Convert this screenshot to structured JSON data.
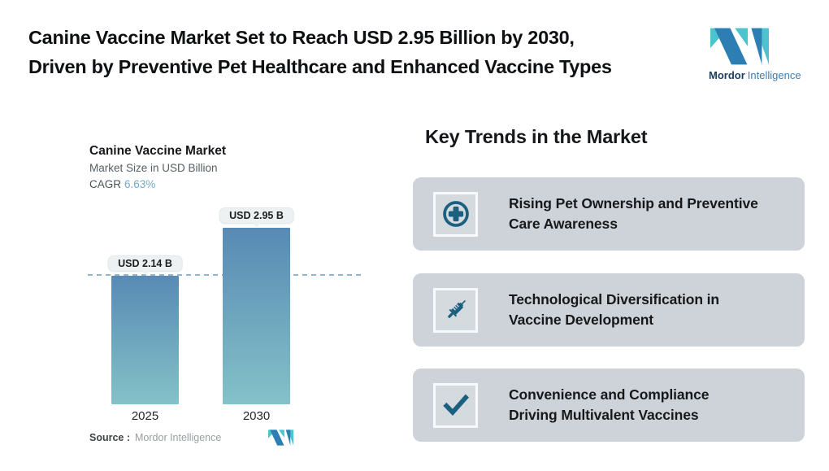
{
  "page": {
    "title_line1": "Canine Vaccine Market Set to Reach USD 2.95 Billion by 2030,",
    "title_line2": "Driven by Preventive Pet Healthcare and Enhanced Vaccine Types"
  },
  "brand": {
    "name_bold": "Mordor",
    "name_light": "Intelligence",
    "logo_blue": "#2d7eb3",
    "logo_teal": "#4cc3cd"
  },
  "chart_data": {
    "type": "bar",
    "title": "Canine Vaccine Market",
    "subtitle": "Market Size in USD Billion",
    "cagr_label": "CAGR",
    "cagr_value": "6.63%",
    "categories": [
      "2025",
      "2030"
    ],
    "values": [
      2.14,
      2.95
    ],
    "value_labels": [
      "USD 2.14 B",
      "USD 2.95 B"
    ],
    "ylim": [
      0,
      3.0
    ],
    "reference_line_value": 2.14,
    "grid": false,
    "legend": false,
    "bar_gradient_top": "#588ab4",
    "bar_gradient_bottom": "#84c1c8",
    "source_label": "Source :",
    "source_value": "Mordor Intelligence"
  },
  "trends": {
    "heading": "Key Trends in the Market",
    "card_bg": "#cdd3d9",
    "icon_color": "#1b6080",
    "items": [
      {
        "icon": "medical-cross-icon",
        "label": "Rising Pet Ownership and Preventive\nCare Awareness"
      },
      {
        "icon": "syringe-icon",
        "label": "Technological Diversification in\nVaccine Development"
      },
      {
        "icon": "checkmark-icon",
        "label": "Convenience and Compliance\nDriving Multivalent Vaccines"
      }
    ]
  }
}
